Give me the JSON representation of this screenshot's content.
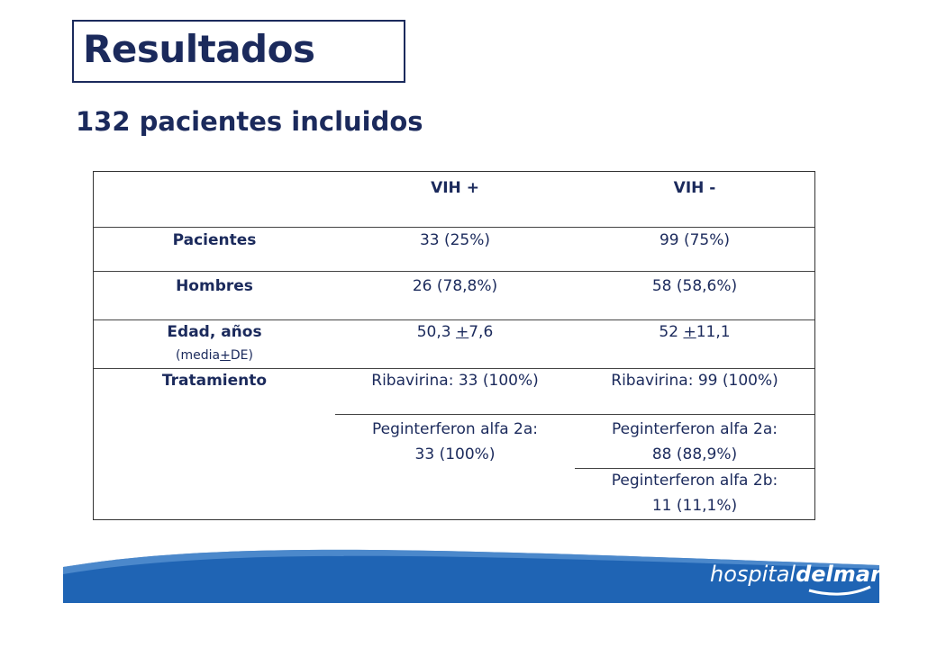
{
  "title": "Resultados",
  "subtitle": "132 pacientes incluidos",
  "table": {
    "headers": [
      "",
      "VIH +",
      "VIH -"
    ],
    "rows": {
      "pacientes": {
        "label": "Pacientes",
        "vih_pos": "33 (25%)",
        "vih_neg": "99 (75%)"
      },
      "hombres": {
        "label": "Hombres",
        "vih_pos": "26 (78,8%)",
        "vih_neg": "58 (58,6%)"
      },
      "edad": {
        "label": "Edad, años",
        "sublabel_pre": "(media",
        "sublabel_pm": "+",
        "sublabel_post": "DE)",
        "vih_pos_a": "50,3 ",
        "vih_pos_pm": "+",
        "vih_pos_b": "7,6",
        "vih_neg_a": "52 ",
        "vih_neg_pm": "+",
        "vih_neg_b": "11,1"
      },
      "tratamiento": {
        "label": "Tratamiento",
        "vih_pos_riba": "Ribavirina: 33 (100%)",
        "vih_neg_riba": "Ribavirina: 99 (100%)",
        "vih_pos_peg2a_l1": "Peginterferon alfa 2a:",
        "vih_pos_peg2a_l2": "33 (100%)",
        "vih_neg_peg2a_l1": "Peginterferon alfa 2a:",
        "vih_neg_peg2a_l2": "88 (88,9%)",
        "vih_neg_peg2b_l1": "Peginterferon alfa 2b:",
        "vih_neg_peg2b_l2": "11 (11,1%)"
      }
    }
  },
  "logo": {
    "part1": "hospital",
    "part2": "del",
    "part3": "mar"
  },
  "colors": {
    "text": "#1b2a5c",
    "band": "#1f64b4",
    "band_light": "#5e97d4",
    "header_bg": "#ffffff"
  }
}
